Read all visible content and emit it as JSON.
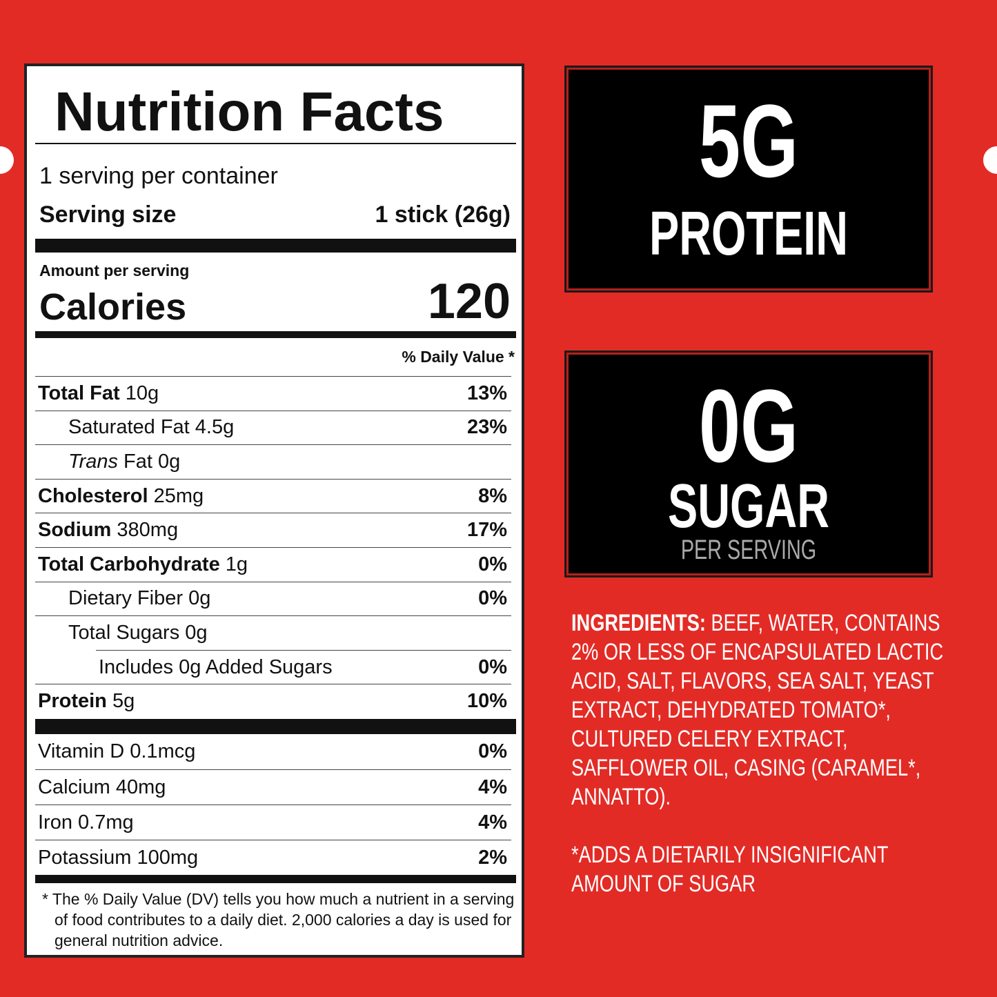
{
  "nutrition_facts": {
    "title": "Nutrition Facts",
    "servings_per_container": "1 serving per container",
    "serving_size_label": "Serving size",
    "serving_size_value": "1 stick (26g)",
    "amount_per_serving": "Amount per serving",
    "calories_label": "Calories",
    "calories_value": "120",
    "daily_value_header": "% Daily Value *",
    "nutrients": [
      {
        "name": "Total Fat",
        "amount": "10g",
        "dv": "13%",
        "sub": [
          {
            "name": "Saturated Fat",
            "amount": "4.5g",
            "dv": "23%"
          },
          {
            "name_italic": "Trans",
            "name": "Fat",
            "amount": "0g"
          }
        ]
      },
      {
        "name": "Cholesterol",
        "amount": "25mg",
        "dv": "8%"
      },
      {
        "name": "Sodium",
        "amount": "380mg",
        "dv": "17%"
      },
      {
        "name": "Total Carbohydrate",
        "amount": "1g",
        "dv": "0%",
        "sub": [
          {
            "name": "Dietary Fiber",
            "amount": "0g",
            "dv": "0%"
          },
          {
            "name": "Total Sugars",
            "amount": "0g",
            "sub": [
              {
                "name": "Includes 0g Added Sugars",
                "dv": "0%"
              }
            ]
          }
        ]
      },
      {
        "name": "Protein",
        "amount": "5g",
        "dv": "10%"
      }
    ],
    "vitamins": [
      {
        "name": "Vitamin D",
        "amount": "0.1mcg",
        "dv": "0%"
      },
      {
        "name": "Calcium",
        "amount": "40mg",
        "dv": "4%"
      },
      {
        "name": "Iron",
        "amount": "0.7mg",
        "dv": "4%"
      },
      {
        "name": "Potassium",
        "amount": "100mg",
        "dv": "2%"
      }
    ],
    "footnote": "* The % Daily Value (DV) tells you how much a nutrient in a serving of food contributes to a daily diet. 2,000 calories a day is used for general nutrition advice."
  },
  "protein_badge": {
    "amount": "5G",
    "label": "PROTEIN"
  },
  "sugar_badge": {
    "amount": "0G",
    "label": "SUGAR",
    "note": "PER SERVING"
  },
  "ingredients": {
    "label": "INGREDIENTS:",
    "text": "BEEF, WATER, CONTAINS 2% OR LESS OF ENCAPSULATED LACTIC ACID, SALT, FLAVORS, SEA SALT, YEAST EXTRACT, DEHYDRATED TOMATO*, CULTURED CELERY EXTRACT, SAFFLOWER OIL, CASING (CARAMEL*, ANNATTO).",
    "footnote": "*ADDS A DIETARILY INSIGNIFICANT AMOUNT OF SUGAR"
  }
}
